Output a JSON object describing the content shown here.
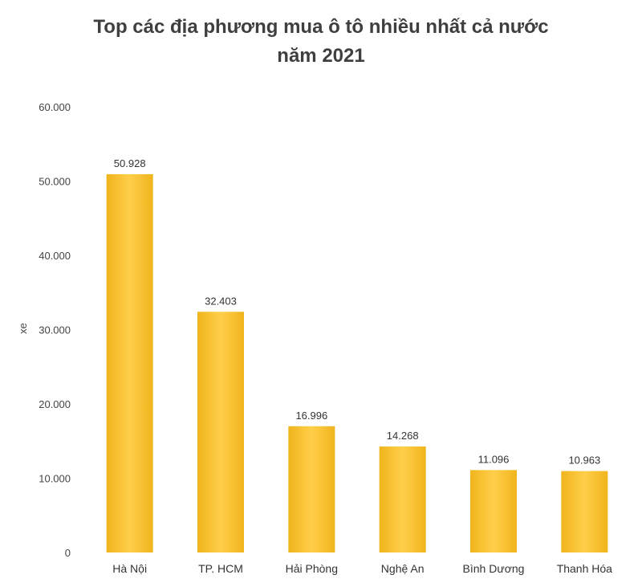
{
  "chart_data": {
    "type": "bar",
    "title_lines": [
      "Top các địa phương mua ô tô nhiều nhất cả nước",
      "năm 2021"
    ],
    "ylabel": "xe",
    "xlabel": "",
    "ylim": [
      0,
      60000
    ],
    "yticks": [
      0,
      10000,
      20000,
      30000,
      40000,
      50000,
      60000
    ],
    "ytick_labels": [
      "0",
      "10.000",
      "20.000",
      "30.000",
      "40.000",
      "50.000",
      "60.000"
    ],
    "categories": [
      "Hà Nội",
      "TP. HCM",
      "Hải Phòng",
      "Nghệ An",
      "Bình Dương",
      "Thanh Hóa"
    ],
    "values": [
      50928,
      32403,
      16996,
      14268,
      11096,
      10963
    ],
    "data_labels": [
      "50.928",
      "32.403",
      "16.996",
      "14.268",
      "11.096",
      "10.963"
    ],
    "grid": false,
    "legend": "none",
    "colors": {
      "bar": "#ffc328",
      "bar_light": "#ffcf4a",
      "bar_edge": "#f0b41c"
    }
  }
}
